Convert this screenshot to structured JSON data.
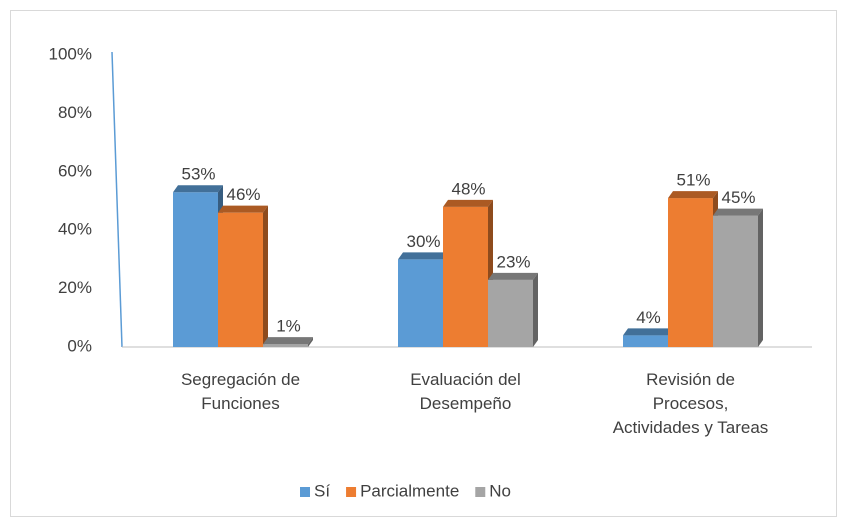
{
  "chart_data": {
    "type": "bar",
    "categories": [
      [
        "Segregación de",
        "Funciones"
      ],
      [
        "Evaluación del",
        "Desempeño"
      ],
      [
        "Revisión de",
        "Procesos,",
        "Actividades  y Tareas"
      ]
    ],
    "series": [
      {
        "name": "Sí",
        "color": "#5b9bd5",
        "values": [
          53,
          30,
          4
        ],
        "value_labels": [
          "53%",
          "30%",
          "4%"
        ]
      },
      {
        "name": "Parcialmente",
        "color": "#ed7d31",
        "values": [
          46,
          48,
          51
        ],
        "value_labels": [
          "46%",
          "48%",
          "51%"
        ]
      },
      {
        "name": "No",
        "color": "#a5a5a5",
        "values": [
          1,
          23,
          45
        ],
        "value_labels": [
          "1%",
          "23%",
          "45%"
        ]
      }
    ],
    "ylim": [
      0,
      100
    ],
    "yticks": [
      {
        "value": 0,
        "label": "0%"
      },
      {
        "value": 20,
        "label": "20%"
      },
      {
        "value": 40,
        "label": "40%"
      },
      {
        "value": 60,
        "label": "60%"
      },
      {
        "value": 80,
        "label": "80%"
      },
      {
        "value": 100,
        "label": "100%"
      }
    ],
    "legend": "bottom"
  }
}
